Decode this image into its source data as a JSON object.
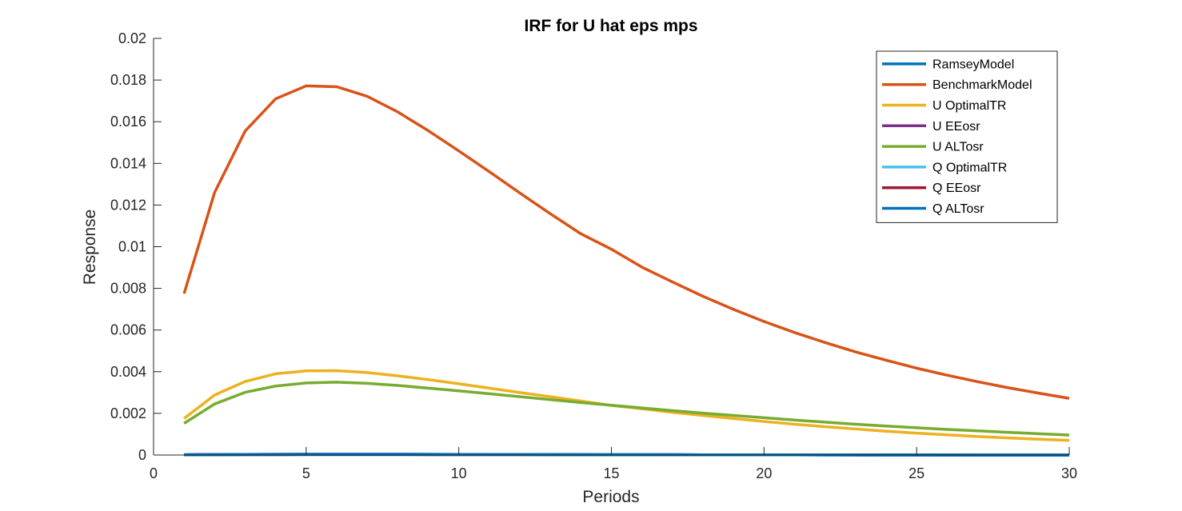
{
  "chart_data": {
    "type": "line",
    "title": "IRF for U hat eps mps",
    "xlabel": "Periods",
    "ylabel": "Response",
    "xlim": [
      0,
      30
    ],
    "ylim": [
      0,
      0.02
    ],
    "x_ticks": [
      "0",
      "5",
      "10",
      "15",
      "20",
      "25",
      "30"
    ],
    "y_ticks": [
      "0",
      "0.002",
      "0.004",
      "0.006",
      "0.008",
      "0.01",
      "0.012",
      "0.014",
      "0.016",
      "0.018",
      "0.02"
    ],
    "grid": false,
    "legend_position": "top-right",
    "x": [
      1,
      2,
      3,
      4,
      5,
      6,
      7,
      8,
      9,
      10,
      11,
      12,
      13,
      14,
      15,
      16,
      17,
      18,
      19,
      20,
      21,
      22,
      23,
      24,
      25,
      26,
      27,
      28,
      29,
      30
    ],
    "series": [
      {
        "name": "RamseyModel",
        "color": "#0072BD",
        "values": [
          1e-05,
          2e-05,
          3e-05,
          3e-05,
          4e-05,
          4e-05,
          4e-05,
          4e-05,
          4e-05,
          3e-05,
          3e-05,
          3e-05,
          3e-05,
          2e-05,
          2e-05,
          2e-05,
          2e-05,
          1e-05,
          1e-05,
          1e-05,
          1e-05,
          1e-05,
          1e-05,
          1e-05,
          1e-05,
          1e-05,
          0.0,
          0.0,
          0.0,
          0.0
        ]
      },
      {
        "name": "BenchmarkModel",
        "color": "#D95319",
        "values": [
          0.00775,
          0.0126,
          0.01555,
          0.0171,
          0.01772,
          0.01768,
          0.01722,
          0.01647,
          0.01557,
          0.0146,
          0.0136,
          0.01258,
          0.01158,
          0.01062,
          0.00988,
          0.00902,
          0.00831,
          0.00762,
          0.00699,
          0.00641,
          0.00588,
          0.0054,
          0.00495,
          0.00455,
          0.00417,
          0.00383,
          0.00352,
          0.00323,
          0.00297,
          0.00272
        ]
      },
      {
        "name": "U OptimalTR",
        "color": "#EDB120",
        "values": [
          0.00175,
          0.00288,
          0.00353,
          0.0039,
          0.00404,
          0.00405,
          0.00396,
          0.0038,
          0.00362,
          0.00342,
          0.00321,
          0.003,
          0.0028,
          0.00259,
          0.00238,
          0.00222,
          0.00205,
          0.0019,
          0.00175,
          0.00161,
          0.00148,
          0.00136,
          0.00125,
          0.00114,
          0.00105,
          0.00097,
          0.00089,
          0.00082,
          0.00076,
          0.0007
        ]
      },
      {
        "name": "U EEosr",
        "color": "#7E2F8E",
        "values": [
          2e-05,
          3e-05,
          3e-05,
          4e-05,
          4e-05,
          4e-05,
          4e-05,
          4e-05,
          3e-05,
          3e-05,
          3e-05,
          3e-05,
          2e-05,
          2e-05,
          2e-05,
          2e-05,
          2e-05,
          1e-05,
          1e-05,
          1e-05,
          1e-05,
          1e-05,
          1e-05,
          1e-05,
          1e-05,
          0.0,
          0.0,
          0.0,
          0.0,
          0.0
        ]
      },
      {
        "name": "U ALTosr",
        "color": "#77AC30",
        "values": [
          0.00152,
          0.00245,
          0.00301,
          0.00331,
          0.00346,
          0.0035,
          0.00344,
          0.00334,
          0.00321,
          0.00308,
          0.00294,
          0.0028,
          0.00266,
          0.00252,
          0.00239,
          0.00226,
          0.00213,
          0.00201,
          0.0019,
          0.00179,
          0.00168,
          0.00158,
          0.00148,
          0.00139,
          0.00131,
          0.00123,
          0.00116,
          0.00109,
          0.00102,
          0.00096
        ]
      },
      {
        "name": "Q OptimalTR",
        "color": "#4DBEEE",
        "values": [
          1e-05,
          2e-05,
          2e-05,
          3e-05,
          3e-05,
          3e-05,
          3e-05,
          3e-05,
          3e-05,
          3e-05,
          2e-05,
          2e-05,
          2e-05,
          2e-05,
          2e-05,
          1e-05,
          1e-05,
          1e-05,
          1e-05,
          1e-05,
          1e-05,
          1e-05,
          1e-05,
          0.0,
          0.0,
          0.0,
          0.0,
          0.0,
          0.0,
          0.0
        ]
      },
      {
        "name": "Q EEosr",
        "color": "#A2142F",
        "values": [
          1e-05,
          2e-05,
          2e-05,
          2e-05,
          3e-05,
          3e-05,
          3e-05,
          3e-05,
          2e-05,
          2e-05,
          2e-05,
          2e-05,
          2e-05,
          2e-05,
          1e-05,
          1e-05,
          1e-05,
          1e-05,
          1e-05,
          1e-05,
          1e-05,
          1e-05,
          0.0,
          0.0,
          0.0,
          0.0,
          0.0,
          0.0,
          0.0,
          0.0
        ]
      },
      {
        "name": "Q ALTosr",
        "color": "#0072BD",
        "values": [
          1e-05,
          1e-05,
          2e-05,
          2e-05,
          2e-05,
          2e-05,
          2e-05,
          2e-05,
          2e-05,
          2e-05,
          2e-05,
          2e-05,
          1e-05,
          1e-05,
          1e-05,
          1e-05,
          1e-05,
          1e-05,
          1e-05,
          1e-05,
          1e-05,
          0.0,
          0.0,
          0.0,
          0.0,
          0.0,
          0.0,
          0.0,
          0.0,
          0.0
        ]
      }
    ]
  }
}
